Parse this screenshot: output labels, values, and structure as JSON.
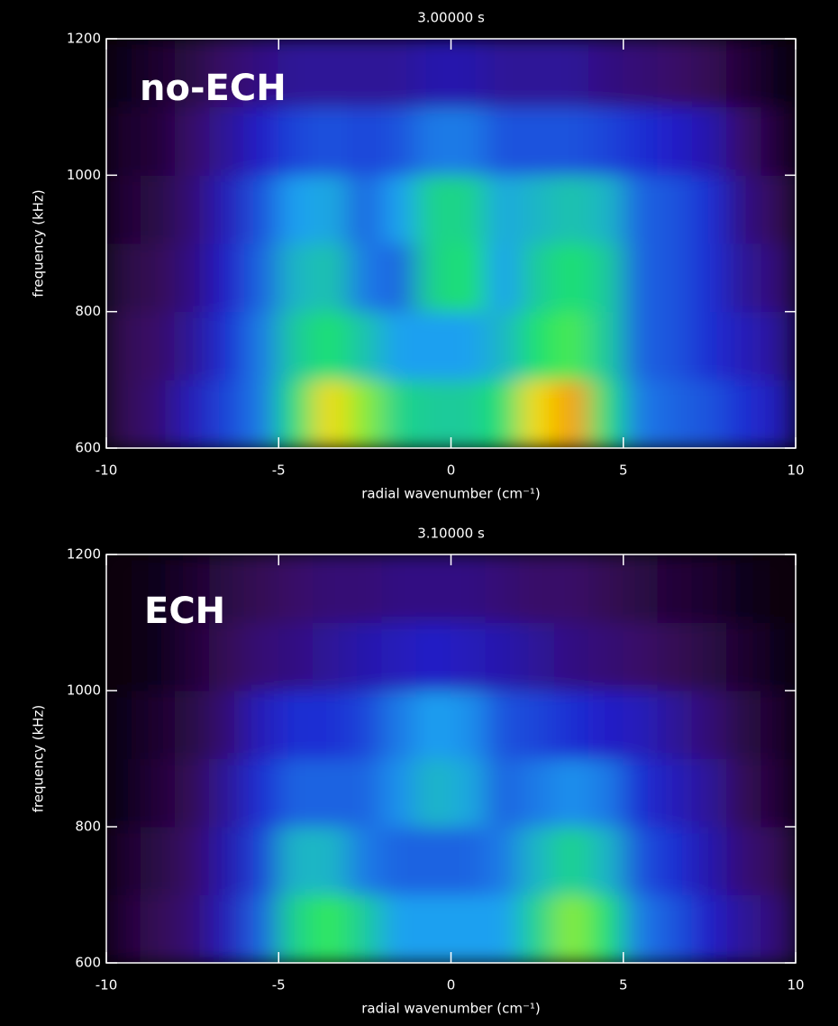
{
  "chart_data": [
    {
      "type": "heatmap",
      "title": "3.00000 s",
      "annotation": "no-ECH",
      "x_label": "radial wavenumber (cm⁻¹)",
      "y_label": "frequency (kHz)",
      "xlim": [
        -10,
        10
      ],
      "ylim": [
        600,
        1200
      ],
      "xticks": [
        -10,
        -5,
        0,
        5,
        10
      ],
      "yticks": [
        600,
        800,
        1000,
        1200
      ],
      "zlim": [
        0,
        1
      ],
      "colormap": [
        "#000000",
        "#3a0a5e",
        "#2020d0",
        "#1aa0f0",
        "#20e860",
        "#f0f000",
        "#ff2000"
      ],
      "x": [
        -9.5,
        -8.5,
        -7.5,
        -6.5,
        -5.5,
        -4.5,
        -3.5,
        -2.5,
        -1.5,
        -0.5,
        0.5,
        1.5,
        2.5,
        3.5,
        4.5,
        5.5,
        6.5,
        7.5,
        8.5,
        9.5
      ],
      "y": [
        650,
        750,
        850,
        950,
        1050,
        1150
      ],
      "z": [
        [
          0.15,
          0.2,
          0.3,
          0.38,
          0.45,
          0.65,
          0.85,
          0.75,
          0.62,
          0.6,
          0.6,
          0.65,
          0.85,
          0.9,
          0.65,
          0.45,
          0.42,
          0.4,
          0.35,
          0.3
        ],
        [
          0.15,
          0.18,
          0.25,
          0.35,
          0.45,
          0.6,
          0.65,
          0.58,
          0.5,
          0.5,
          0.5,
          0.55,
          0.65,
          0.7,
          0.6,
          0.42,
          0.4,
          0.35,
          0.3,
          0.25
        ],
        [
          0.12,
          0.15,
          0.22,
          0.32,
          0.42,
          0.55,
          0.58,
          0.45,
          0.42,
          0.62,
          0.65,
          0.5,
          0.6,
          0.65,
          0.6,
          0.42,
          0.4,
          0.35,
          0.25,
          0.2
        ],
        [
          0.1,
          0.12,
          0.2,
          0.3,
          0.4,
          0.5,
          0.52,
          0.42,
          0.5,
          0.62,
          0.62,
          0.52,
          0.55,
          0.58,
          0.55,
          0.42,
          0.4,
          0.35,
          0.22,
          0.15
        ],
        [
          0.08,
          0.1,
          0.18,
          0.25,
          0.32,
          0.38,
          0.4,
          0.38,
          0.4,
          0.45,
          0.45,
          0.4,
          0.4,
          0.4,
          0.38,
          0.35,
          0.32,
          0.28,
          0.18,
          0.1
        ],
        [
          0.05,
          0.08,
          0.12,
          0.18,
          0.22,
          0.25,
          0.25,
          0.25,
          0.25,
          0.28,
          0.28,
          0.25,
          0.25,
          0.25,
          0.22,
          0.2,
          0.18,
          0.15,
          0.1,
          0.05
        ]
      ]
    },
    {
      "type": "heatmap",
      "title": "3.10000 s",
      "annotation": "ECH",
      "x_label": "radial wavenumber (cm⁻¹)",
      "y_label": "frequency (kHz)",
      "xlim": [
        -10,
        10
      ],
      "ylim": [
        600,
        1200
      ],
      "xticks": [
        -10,
        -5,
        0,
        5,
        10
      ],
      "yticks": [
        600,
        800,
        1000,
        1200
      ],
      "zlim": [
        0,
        1
      ],
      "colormap": [
        "#000000",
        "#3a0a5e",
        "#2020d0",
        "#1aa0f0",
        "#20e860",
        "#f0f000",
        "#ff2000"
      ],
      "x": [
        -9.5,
        -8.5,
        -7.5,
        -6.5,
        -5.5,
        -4.5,
        -3.5,
        -2.5,
        -1.5,
        -0.5,
        0.5,
        1.5,
        2.5,
        3.5,
        4.5,
        5.5,
        6.5,
        7.5,
        8.5,
        9.5
      ],
      "y": [
        650,
        750,
        850,
        950,
        1050,
        1150
      ],
      "z": [
        [
          0.1,
          0.15,
          0.2,
          0.3,
          0.42,
          0.62,
          0.68,
          0.6,
          0.5,
          0.5,
          0.5,
          0.5,
          0.62,
          0.75,
          0.65,
          0.45,
          0.4,
          0.32,
          0.25,
          0.2
        ],
        [
          0.08,
          0.12,
          0.18,
          0.28,
          0.38,
          0.55,
          0.55,
          0.45,
          0.42,
          0.42,
          0.42,
          0.45,
          0.55,
          0.62,
          0.55,
          0.4,
          0.35,
          0.28,
          0.2,
          0.15
        ],
        [
          0.05,
          0.1,
          0.15,
          0.25,
          0.35,
          0.42,
          0.42,
          0.42,
          0.48,
          0.55,
          0.52,
          0.42,
          0.45,
          0.48,
          0.45,
          0.35,
          0.3,
          0.25,
          0.15,
          0.1
        ],
        [
          0.05,
          0.08,
          0.12,
          0.2,
          0.3,
          0.35,
          0.35,
          0.38,
          0.45,
          0.5,
          0.48,
          0.4,
          0.38,
          0.35,
          0.32,
          0.3,
          0.25,
          0.2,
          0.12,
          0.08
        ],
        [
          0.03,
          0.05,
          0.1,
          0.15,
          0.2,
          0.22,
          0.25,
          0.28,
          0.3,
          0.32,
          0.3,
          0.28,
          0.25,
          0.22,
          0.2,
          0.18,
          0.15,
          0.12,
          0.08,
          0.05
        ],
        [
          0.02,
          0.05,
          0.08,
          0.12,
          0.15,
          0.18,
          0.2,
          0.2,
          0.22,
          0.22,
          0.22,
          0.2,
          0.18,
          0.18,
          0.15,
          0.12,
          0.1,
          0.08,
          0.05,
          0.03
        ]
      ]
    }
  ]
}
